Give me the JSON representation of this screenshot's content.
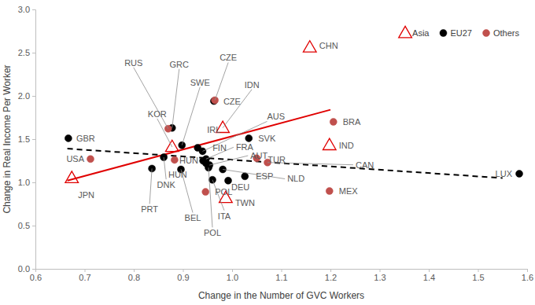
{
  "chart_data": {
    "type": "scatter",
    "x_label": "Change in the Number of GVC Workers",
    "y_label": "Change in Real Income Per Worker",
    "xlim": [
      0.6,
      1.6
    ],
    "ylim": [
      0,
      3
    ],
    "xticks": [
      0.6,
      0.7,
      0.8,
      0.9,
      {
        "value": 1,
        "label": "1.0"
      },
      1.1,
      1.2,
      1.3,
      1.4,
      1.5,
      1.6
    ],
    "yticks": [
      {
        "value": 0,
        "label": "0.0"
      },
      0.5,
      {
        "value": 1,
        "label": "1.0"
      },
      1.5,
      {
        "value": 2,
        "label": "2.0"
      },
      2.5,
      {
        "value": 3,
        "label": "3.0"
      }
    ],
    "grid": false,
    "legend": "upper right",
    "series": [
      {
        "name": "Asia",
        "type": "scatter",
        "color": "#e00000",
        "marker": "open-triangle",
        "labels": [
          "CHN",
          "IND",
          "JPN",
          "KOR",
          "IDN",
          "TWN"
        ],
        "x": [
          1.158,
          1.198,
          0.674,
          0.878,
          0.981,
          0.987
        ],
        "values": [
          2.56,
          1.43,
          1.05,
          1.41,
          1.63,
          0.82
        ]
      },
      {
        "name": "EU27",
        "type": "scatter",
        "color": "#000000",
        "marker": "circle",
        "labels": [
          "GBR",
          "GRC",
          "CZE",
          "SWE",
          "IRL",
          "AUS",
          "FIN",
          "FRA",
          "HUN",
          "AUT",
          "NLD",
          "ESP",
          "DEU",
          "ITA",
          "POL",
          "DNK",
          "PRT",
          "BEL",
          "SVK",
          "LUX"
        ],
        "x": [
          0.667,
          0.878,
          0.963,
          0.898,
          0.93,
          0.94,
          0.941,
          0.947,
          0.947,
          0.954,
          0.981,
          1.026,
          0.992,
          0.96,
          0.952,
          0.861,
          0.837,
          0.896,
          1.034,
          1.584
        ],
        "values": [
          1.51,
          1.63,
          1.94,
          1.43,
          1.4,
          1.36,
          1.25,
          1.27,
          1.22,
          1.2,
          1.15,
          1.07,
          1.02,
          1.03,
          1.17,
          1.29,
          1.16,
          1.15,
          1.51,
          1.1
        ]
      },
      {
        "name": "Others",
        "type": "scatter",
        "color": "#c0504d",
        "marker": "circle",
        "labels": [
          "RUS",
          "USA",
          "CZE",
          "HUN",
          "POL",
          "TUR",
          "CAN",
          "BRA",
          "MEX"
        ],
        "x": [
          0.87,
          0.712,
          0.965,
          0.883,
          0.946,
          1.05,
          1.072,
          1.206,
          1.198
        ],
        "values": [
          1.62,
          1.27,
          1.95,
          1.26,
          0.89,
          1.28,
          1.23,
          1.7,
          0.9
        ]
      },
      {
        "type": "line",
        "color": "#e00000",
        "line_style": "solid",
        "x": [
          0.665,
          1.2
        ],
        "values": [
          1.02,
          1.84
        ]
      },
      {
        "type": "line",
        "color": "#000000",
        "line_style": "dashed",
        "x": [
          0.665,
          1.55
        ],
        "values": [
          1.39,
          1.05
        ]
      }
    ]
  }
}
